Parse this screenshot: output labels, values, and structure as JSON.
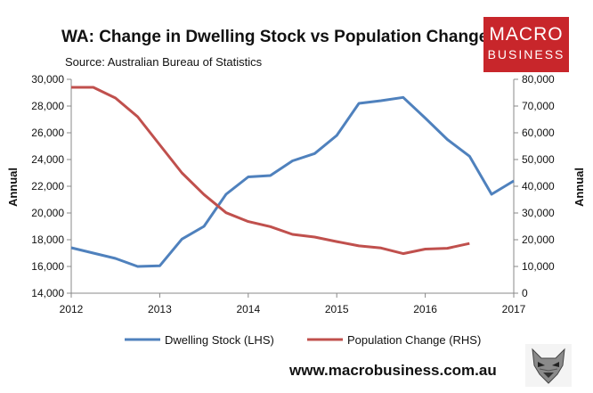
{
  "header": {
    "title": "WA: Change in Dwelling Stock vs Population Change",
    "source": "Source: Australian Bureau of Statistics"
  },
  "logo": {
    "line1": "MACRO",
    "line2": "BUSINESS"
  },
  "footer": {
    "url": "www.macrobusiness.com.au"
  },
  "colors": {
    "dwelling": "#4f81bd",
    "population": "#c0504d",
    "brand": "#c8262b"
  },
  "chart_data": {
    "type": "line",
    "title": "WA: Change in Dwelling Stock vs Population Change",
    "xlabel": "",
    "ylabel_left": "Annual",
    "ylabel_right": "Annual",
    "xlim": [
      2012,
      2017
    ],
    "x_ticks": [
      "2012",
      "2013",
      "2014",
      "2015",
      "2016",
      "2017"
    ],
    "ylim_left": [
      14000,
      30000
    ],
    "yticks_left": [
      "14,000",
      "16,000",
      "18,000",
      "20,000",
      "22,000",
      "24,000",
      "26,000",
      "28,000",
      "30,000"
    ],
    "ylim_right": [
      0,
      80000
    ],
    "yticks_right": [
      "0",
      "10,000",
      "20,000",
      "30,000",
      "40,000",
      "50,000",
      "60,000",
      "70,000",
      "80,000"
    ],
    "legend_position": "bottom",
    "series": [
      {
        "name": "Dwelling Stock (LHS)",
        "axis": "left",
        "x": [
          2012.0,
          2012.25,
          2012.5,
          2012.75,
          2013.0,
          2013.25,
          2013.5,
          2013.75,
          2014.0,
          2014.25,
          2014.5,
          2014.75,
          2015.0,
          2015.25,
          2015.5,
          2015.75,
          2016.0,
          2016.25,
          2016.5,
          2016.75,
          2017.0
        ],
        "values": [
          17400,
          17000,
          16600,
          16000,
          16050,
          18050,
          19000,
          21400,
          22700,
          22800,
          23900,
          24450,
          25800,
          28200,
          28400,
          28650,
          27100,
          25500,
          24250,
          21400,
          22400
        ]
      },
      {
        "name": "Population Change (RHS)",
        "axis": "right",
        "x": [
          2012.0,
          2012.25,
          2012.5,
          2012.75,
          2013.0,
          2013.25,
          2013.5,
          2013.75,
          2014.0,
          2014.25,
          2014.5,
          2014.75,
          2015.0,
          2015.25,
          2015.5,
          2015.75,
          2016.0,
          2016.25,
          2016.5
        ],
        "values": [
          77000,
          77000,
          73000,
          66000,
          55500,
          45000,
          36900,
          30100,
          26800,
          24900,
          22000,
          21000,
          19300,
          17700,
          16900,
          14800,
          16500,
          16800,
          18600
        ]
      }
    ]
  }
}
